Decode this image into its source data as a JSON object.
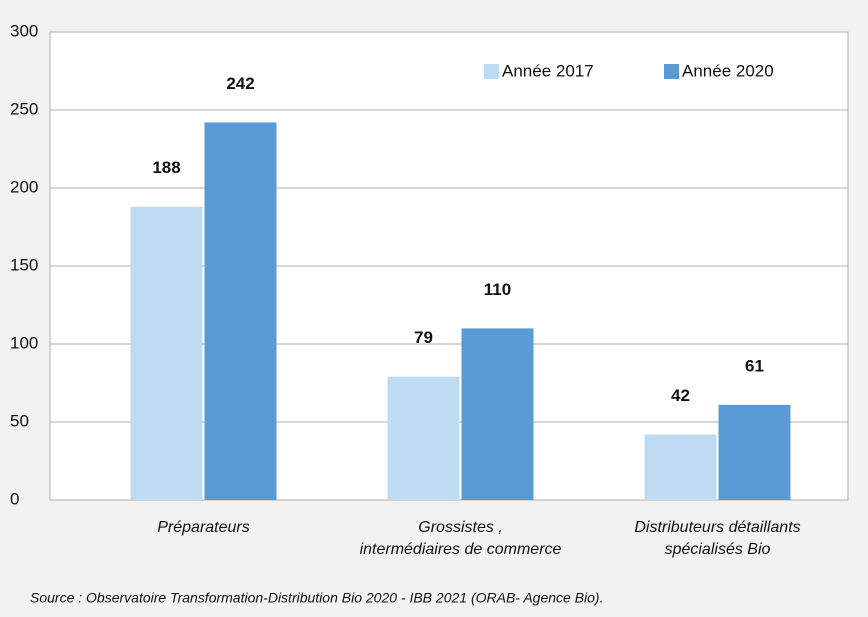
{
  "chart_data": {
    "type": "bar",
    "categories": [
      "Préparateurs",
      "Grossistes ,\nintermédiaires de commerce",
      "Distributeurs détaillants\nspécialisés Bio"
    ],
    "series": [
      {
        "name": "Année 2017",
        "color": "#bddcf4",
        "values": [
          188,
          79,
          42
        ]
      },
      {
        "name": "Année 2020",
        "color": "#5b9bd5",
        "values": [
          242,
          110,
          61
        ]
      }
    ],
    "ylim": [
      0,
      300
    ],
    "yticks": [
      0,
      50,
      100,
      150,
      200,
      250,
      300
    ],
    "grid": true,
    "legend": "top-right",
    "source": "Source : Observatoire Transformation-Distribution Bio 2020 - IBB 2021 (ORAB- Agence Bio)."
  }
}
